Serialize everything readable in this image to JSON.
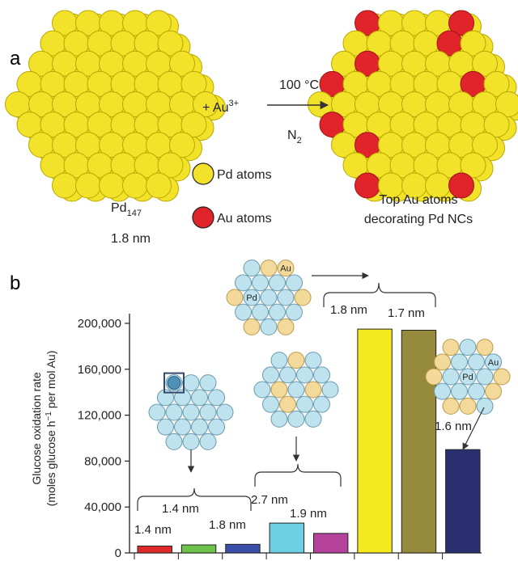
{
  "colors": {
    "pd_atom": "#f2e22a",
    "pd_atom_stroke": "#b8a800",
    "au_atom": "#e0242a",
    "cluster_blue": "#bfe3ee",
    "cluster_blue_stroke": "#6a9aae",
    "cluster_gold": "#f3d99a",
    "cluster_gold_stroke": "#b99a4e"
  },
  "panel_a": {
    "label": "a",
    "reactant": "+ Au",
    "reactant_charge": "3+",
    "condition_temp": "100 °C",
    "condition_gas": "N",
    "condition_gas_sub": "2",
    "pd_name": "Pd",
    "pd_sub": "147",
    "pd_size": "1.8 nm",
    "legend_pd": "Pd atoms",
    "legend_au": "Au atoms",
    "product_line1": "Top Au atoms",
    "product_line2": "decorating Pd NCs"
  },
  "panel_b": {
    "label": "b",
    "ylabel_line1": "Glucose oxidation rate",
    "ylabel_line2": "(moles glucose h",
    "ylabel_sup": "−1",
    "ylabel_tail": " per mol Au)",
    "cluster_labels": {
      "au": "Au",
      "pd": "Pd"
    },
    "annotations": {
      "group_1": "1.4 nm",
      "bar_1": "1.4 nm",
      "bar_3": "1.8 nm",
      "bar_4": "2.7 nm",
      "bar_5": "1.9 nm",
      "bar_6": "1.8 nm",
      "bar_7": "1.7 nm",
      "bar_8": "1.6 nm"
    }
  },
  "chart_data": {
    "type": "bar",
    "categories": [
      "",
      "",
      "",
      "",
      "",
      "",
      "",
      ""
    ],
    "values": [
      6000,
      7000,
      7500,
      26000,
      17000,
      195000,
      194000,
      90000
    ],
    "bar_colors": [
      "#e02a2a",
      "#6cc24a",
      "#3c4fa8",
      "#6ccfe3",
      "#b4429a",
      "#f3ea1e",
      "#968b3c",
      "#2a2f70"
    ],
    "ylim": [
      0,
      200000
    ],
    "yticks": [
      "0",
      "40,000",
      "80,000",
      "120,000",
      "160,000",
      "200,000"
    ],
    "ytick_values": [
      0,
      40000,
      80000,
      120000,
      160000,
      200000
    ],
    "grid": false
  }
}
